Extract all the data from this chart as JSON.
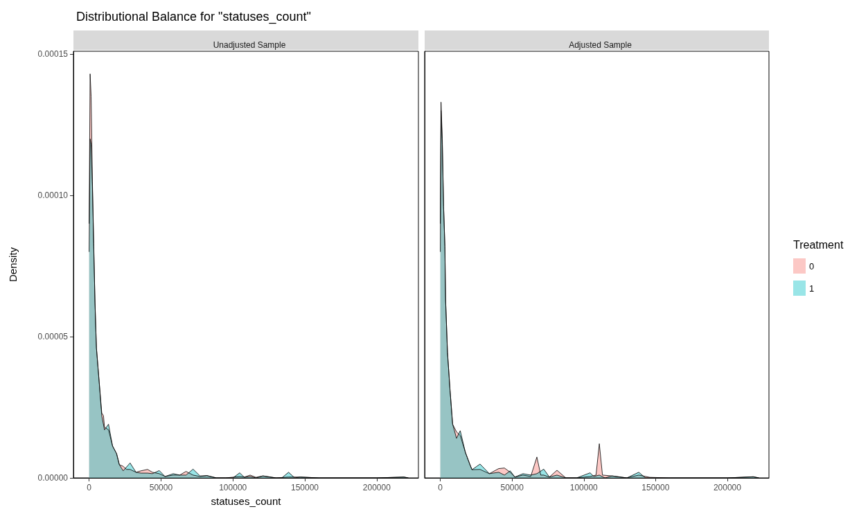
{
  "chart_data": [
    {
      "type": "area",
      "title": "Distributional Balance for \"statuses_count\"",
      "subtitle": "Unadjusted Sample",
      "xlabel": "statuses_count",
      "ylabel": "Density",
      "xlim": [
        -10900,
        229000
      ],
      "xticks": [
        0,
        50000,
        100000,
        150000,
        200000
      ],
      "ylim": [
        0,
        0.000151
      ],
      "yticks": [
        {
          "value": 0,
          "label": "0.00000"
        },
        {
          "value": 5e-05,
          "label": "0.00005"
        },
        {
          "value": 0.0001,
          "label": "0.00010"
        },
        {
          "value": 0.00015,
          "label": "0.00015"
        }
      ],
      "grid": false,
      "legend": false,
      "series": [
        {
          "color": "#f8766d",
          "x": [
            0,
            700,
            1400,
            2300,
            3200,
            4100,
            5100,
            7000,
            8800,
            10000,
            10700,
            13500,
            16300,
            19100,
            21000,
            23700,
            26000,
            28500,
            32600,
            36000,
            40700,
            44000,
            48800,
            52800,
            58500,
            63000,
            67400,
            72300,
            77100,
            82000,
            88500,
            95000,
            104700,
            108000,
            112000,
            116000,
            120900,
            130000,
            138700,
            146800,
            160000,
            200000,
            218900,
            222000
          ],
          "values": [
            9e-05,
            0.000143,
            0.000135,
            0.000105,
            8.3e-05,
            6.2e-05,
            4.6e-05,
            3.4e-05,
            2.3e-05,
            2.2e-05,
            1.8e-05,
            1.7e-05,
            1.13e-05,
            8.6e-06,
            4.7e-06,
            4.1e-06,
            3e-06,
            3e-06,
            2e-06,
            2.5e-06,
            3e-06,
            2e-06,
            1.5e-06,
            5e-07,
            1e-06,
            1e-06,
            2.3e-06,
            1e-06,
            5e-07,
            8e-07,
            0,
            0,
            5e-07,
            3e-07,
            1e-06,
            2e-07,
            7e-07,
            0,
            3e-07,
            3e-07,
            0,
            0,
            3e-07,
            0
          ]
        },
        {
          "color": "#00bfc4",
          "x": [
            0,
            700,
            1400,
            2300,
            3200,
            4100,
            5100,
            7000,
            8800,
            10700,
            13500,
            16300,
            19100,
            21000,
            23700,
            28500,
            32600,
            36000,
            40700,
            44000,
            48800,
            52800,
            58500,
            63000,
            67400,
            72300,
            77100,
            82000,
            88500,
            95000,
            100000,
            104700,
            108000,
            112000,
            116000,
            120900,
            130000,
            134000,
            138700,
            143000,
            146800,
            160000,
            200000,
            218900,
            222000
          ],
          "values": [
            8e-05,
            0.00012,
            0.000118,
            0.000103,
            8.2e-05,
            6.2e-05,
            4.6e-05,
            3.4e-05,
            2.2e-05,
            1.7e-05,
            1.9e-05,
            1.13e-05,
            8.6e-06,
            4.7e-06,
            2.5e-06,
            5.3e-06,
            2e-06,
            1.7e-06,
            1.7e-06,
            1.5e-06,
            2.6e-06,
            5e-07,
            1.5e-06,
            1e-06,
            1e-06,
            3.1e-06,
            7e-07,
            8e-07,
            0,
            0,
            0,
            1.8e-06,
            2e-07,
            5e-07,
            0,
            7e-07,
            0,
            0,
            2e-06,
            0,
            3e-07,
            0,
            0,
            3e-07,
            0
          ]
        }
      ]
    },
    {
      "type": "area",
      "subtitle": "Adjusted Sample",
      "xlim": [
        -10900,
        229000
      ],
      "xticks": [
        0,
        50000,
        100000,
        150000,
        200000
      ],
      "ylim": [
        0,
        0.000151
      ],
      "tick_labels": "x",
      "grid": false,
      "legend": "right",
      "legend_title": "Treatment",
      "series": [
        {
          "name": "0",
          "color": "#f8766d",
          "x": [
            0,
            500,
            1400,
            2300,
            3200,
            3700,
            5000,
            6800,
            8600,
            11300,
            13900,
            17500,
            20500,
            22100,
            27700,
            34200,
            40700,
            44700,
            48700,
            52000,
            57600,
            63000,
            67300,
            70000,
            72100,
            76000,
            81300,
            87500,
            95000,
            104400,
            108500,
            110800,
            113000,
            119700,
            130000,
            138300,
            146000,
            160000,
            200000,
            218100,
            222000
          ],
          "values": [
            9e-05,
            0.000133,
            0.00012,
            9.6e-05,
            8.2e-05,
            6.3e-05,
            4.45e-05,
            3.1e-05,
            1.9e-05,
            1.63e-05,
            1.5e-05,
            9e-06,
            4.9e-06,
            2.9e-06,
            3e-06,
            1.5e-06,
            3.3e-06,
            3.5e-06,
            2e-06,
            3e-07,
            1e-06,
            5e-07,
            7.4e-06,
            1e-06,
            1e-06,
            3e-07,
            2.7e-06,
            0,
            0,
            5e-07,
            1e-06,
            1.21e-05,
            1e-06,
            7e-07,
            0,
            1e-06,
            2e-07,
            0,
            0,
            4e-07,
            0
          ]
        },
        {
          "name": "1",
          "color": "#00bfc4",
          "x": [
            0,
            500,
            1400,
            2300,
            3200,
            3700,
            5000,
            6800,
            8600,
            11300,
            13900,
            17500,
            20500,
            22100,
            27700,
            34200,
            40700,
            44700,
            48700,
            52000,
            57600,
            63000,
            67300,
            72100,
            76000,
            81300,
            87500,
            95000,
            104400,
            107000,
            110800,
            114700,
            119700,
            130000,
            138300,
            143000,
            160000,
            200000,
            218100,
            222000
          ],
          "values": [
            8e-05,
            0.00013,
            0.000118,
            9.6e-05,
            8.2e-05,
            6.3e-05,
            4.45e-05,
            3.1e-05,
            1.9e-05,
            1.4e-05,
            1.67e-05,
            9e-06,
            4.9e-06,
            2.9e-06,
            4.9e-06,
            1.5e-06,
            2e-06,
            1e-06,
            2.5e-06,
            3e-07,
            1.5e-06,
            1e-06,
            1.5e-06,
            3.1e-06,
            3e-07,
            1e-06,
            0,
            0,
            1.8e-06,
            5e-07,
            1e-06,
            0,
            7e-07,
            0,
            2e-06,
            0,
            0,
            0,
            4e-07,
            0
          ]
        }
      ]
    }
  ]
}
